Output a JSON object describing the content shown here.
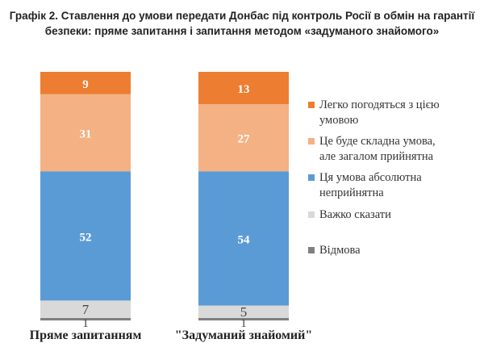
{
  "chart_data": {
    "type": "bar",
    "stacked": true,
    "title": "Графік 2. Ставлення до умови передати Донбас під контроль Росії в обмін на гарантії безпеки: пряме запитання і запитання методом «задуманого знайомого»",
    "title_lines": [
      "Графік 2. Ставлення до умови передати Донбас під контроль Росії в обмін на гарантії",
      "безпеки: пряме запитання і запитання методом «задуманого знайомого»"
    ],
    "categories": [
      "Пряме запитанням",
      "\"Задуманий знайомий\""
    ],
    "ylim": [
      0,
      100
    ],
    "legend_position": "right",
    "series": [
      {
        "name": "Відмова",
        "values": [
          1,
          1
        ],
        "color": "#7f7f7f",
        "label_color": "#444444"
      },
      {
        "name": "Важко сказати",
        "values": [
          7,
          5
        ],
        "color": "#d9d9d9",
        "label_color": "#444444"
      },
      {
        "name": "Ця умова абсолютна неприйнятна",
        "values": [
          52,
          54
        ],
        "color": "#5b9bd5",
        "label_color": "#ffffff"
      },
      {
        "name": "Це буде складна умова, але загалом прийнятна",
        "values": [
          31,
          27
        ],
        "color": "#f4b183",
        "label_color": "#ffffff"
      },
      {
        "name": "Легко погодяться з цією умовою",
        "values": [
          9,
          13
        ],
        "color": "#ed7d31",
        "label_color": "#ffffff"
      }
    ],
    "legend": [
      {
        "lines": [
          "Легко погодяться з цією",
          "умовою"
        ],
        "color": "#ed7d31"
      },
      {
        "lines": [
          "Це буде складна умова,",
          "але загалом прийнятна"
        ],
        "color": "#f4b183"
      },
      {
        "lines": [
          "Ця умова абсолютна",
          "неприйнятна"
        ],
        "color": "#5b9bd5"
      },
      {
        "lines": [
          "Важко сказати"
        ],
        "color": "#d9d9d9"
      },
      {
        "lines": [
          "Відмова"
        ],
        "color": "#7f7f7f"
      }
    ]
  }
}
